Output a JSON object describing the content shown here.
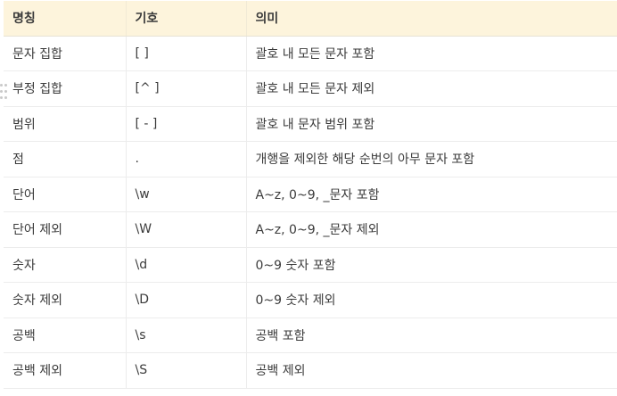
{
  "table": {
    "headers": [
      "명칭",
      "기호",
      "의미"
    ],
    "rows": [
      {
        "name": "문자 집합",
        "symbol": "[ ]",
        "meaning": "괄호 내 모든 문자 포함"
      },
      {
        "name": "부정 집합",
        "symbol": "[^ ]",
        "meaning": "괄호 내 모든 문자 제외"
      },
      {
        "name": "범위",
        "symbol": "[ - ]",
        "meaning": "괄호 내 문자 범위 포함"
      },
      {
        "name": "점",
        "symbol": ".",
        "meaning": "개행을 제외한 해당 순번의 아무 문자 포함"
      },
      {
        "name": "단어",
        "symbol": "\\w",
        "meaning": "A~z, 0~9, _문자 포함"
      },
      {
        "name": "단어 제외",
        "symbol": "\\W",
        "meaning": "A~z, 0~9, _문자 제외"
      },
      {
        "name": "숫자",
        "symbol": "\\d",
        "meaning": "0~9 숫자 포함"
      },
      {
        "name": "숫자 제외",
        "symbol": "\\D",
        "meaning": "0~9 숫자 제외"
      },
      {
        "name": "공백",
        "symbol": "\\s",
        "meaning": "공백 포함"
      },
      {
        "name": "공백 제외",
        "symbol": "\\S",
        "meaning": "공백 제외"
      }
    ]
  },
  "colors": {
    "header_background": "#fdf4dc",
    "row_divider": "#ececec",
    "text": "#3b3b3b"
  },
  "icons": {
    "row_handle": "drag-handle-icon"
  }
}
